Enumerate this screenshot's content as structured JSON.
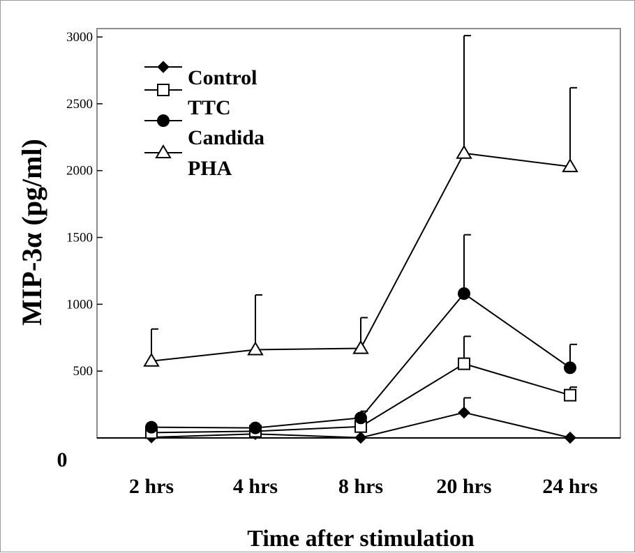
{
  "chart_data": {
    "type": "line",
    "title": "",
    "xlabel": "Time after stimulation",
    "ylabel": "MIP-3α (pg/ml)",
    "categories": [
      "2 hrs",
      "4 hrs",
      "8 hrs",
      "20 hrs",
      "24 hrs"
    ],
    "ylim": [
      0,
      3000
    ],
    "y_ticks": [
      "3000",
      "2500",
      "2000",
      "1500",
      "1000",
      "500"
    ],
    "zero_label": "0",
    "legend_position": "top-left",
    "grid": false,
    "series": [
      {
        "name": "Control",
        "marker": "diamond-filled",
        "values": [
          5,
          30,
          2,
          190,
          2
        ],
        "error": [
          0,
          0,
          0,
          110,
          0
        ]
      },
      {
        "name": "TTC",
        "marker": "square-open",
        "values": [
          40,
          50,
          85,
          555,
          320
        ],
        "error": [
          0,
          0,
          0,
          205,
          60
        ]
      },
      {
        "name": "Candida",
        "marker": "circle-filled",
        "values": [
          80,
          75,
          150,
          1080,
          525
        ],
        "error": [
          0,
          0,
          50,
          440,
          175
        ]
      },
      {
        "name": "PHA",
        "marker": "triangle-open",
        "values": [
          575,
          660,
          670,
          2130,
          2030
        ],
        "error": [
          240,
          410,
          230,
          880,
          590
        ]
      }
    ]
  }
}
